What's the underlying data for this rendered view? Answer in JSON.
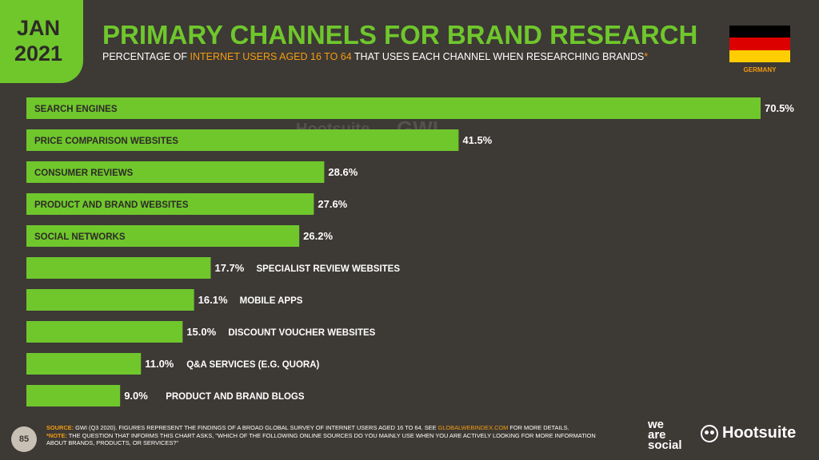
{
  "header": {
    "month": "JAN",
    "year": "2021",
    "title": "PRIMARY CHANNELS FOR BRAND RESEARCH",
    "subtitle_pre": "PERCENTAGE OF ",
    "subtitle_highlight": "INTERNET USERS AGED 16 TO 64",
    "subtitle_post": " THAT USES EACH CHANNEL WHEN RESEARCHING BRANDS",
    "subtitle_mark": "*",
    "country": "GERMANY"
  },
  "colors": {
    "accent": "#6fc72c",
    "highlight": "#f39c12",
    "background": "#3d3935",
    "flag": [
      "#000000",
      "#dd0000",
      "#ffce00"
    ]
  },
  "chart_data": {
    "type": "bar",
    "orientation": "horizontal",
    "categories": [
      "SEARCH ENGINES",
      "PRICE COMPARISON WEBSITES",
      "CONSUMER REVIEWS",
      "PRODUCT AND BRAND WEBSITES",
      "SOCIAL NETWORKS",
      "SPECIALIST REVIEW WEBSITES",
      "MOBILE APPS",
      "DISCOUNT VOUCHER WEBSITES",
      "Q&A SERVICES (E.G. QUORA)",
      "PRODUCT AND BRAND BLOGS"
    ],
    "values": [
      70.5,
      41.5,
      28.6,
      27.6,
      26.2,
      17.7,
      16.1,
      15.0,
      11.0,
      9.0
    ],
    "value_labels": [
      "70.5%",
      "41.5%",
      "28.6%",
      "27.6%",
      "26.2%",
      "17.7%",
      "16.1%",
      "15.0%",
      "11.0%",
      "9.0%"
    ],
    "unit": "%",
    "xlim": [
      0,
      70.5
    ]
  },
  "watermark": [
    "we are social",
    "Hootsuite",
    "GWI."
  ],
  "footer": {
    "page_number": "85",
    "source_label": "SOURCE:",
    "source_text": " GWI (Q3 2020). FIGURES REPRESENT THE FINDINGS OF A BROAD GLOBAL SURVEY OF INTERNET USERS AGED 16 TO 64. SEE ",
    "source_link": "GLOBALWEBINDEX.COM",
    "source_end": " FOR MORE DETAILS.",
    "note_label": "*NOTE:",
    "note_text": " THE QUESTION THAT INFORMS THIS CHART ASKS, \"WHICH OF THE FOLLOWING ONLINE SOURCES DO YOU MAINLY USE WHEN YOU ARE ACTIVELY LOOKING FOR MORE INFORMATION ABOUT BRANDS, PRODUCTS, OR SERVICES?\"",
    "logo_was": [
      "we",
      "are",
      "social"
    ],
    "logo_hootsuite": "Hootsuite"
  }
}
